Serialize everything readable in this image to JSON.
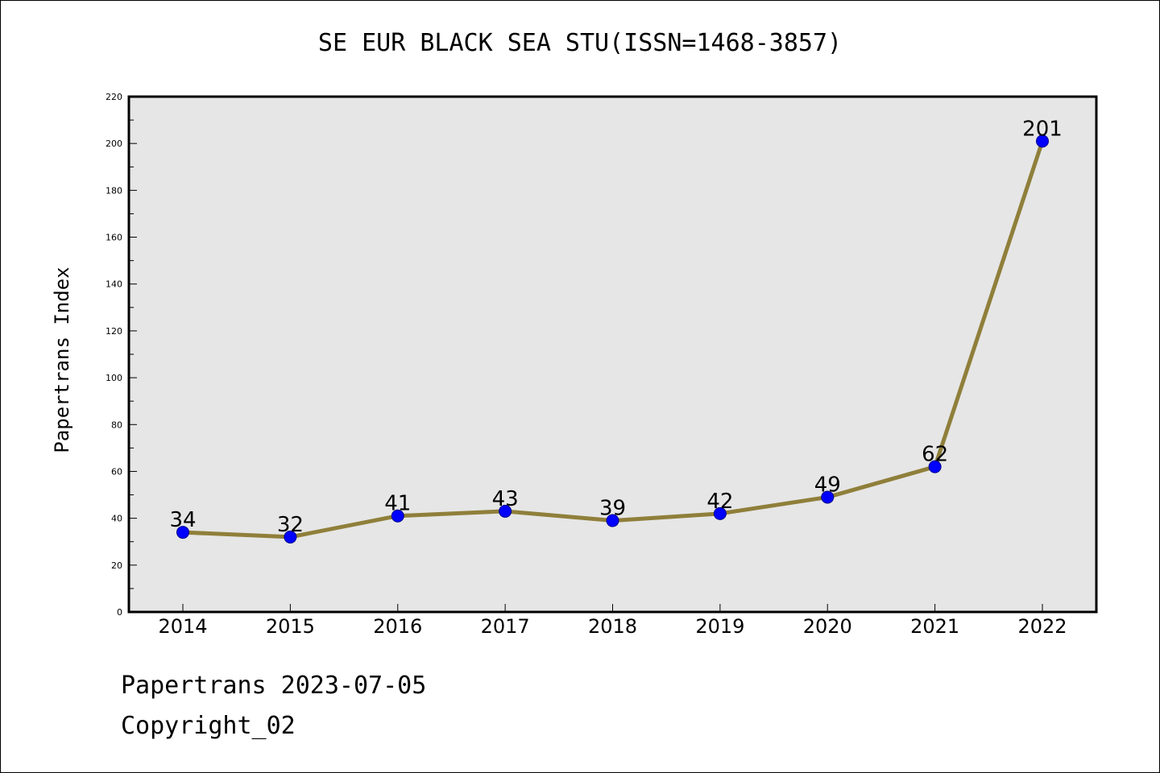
{
  "title": "SE EUR BLACK SEA STU(ISSN=1468-3857)",
  "footer": {
    "date_line": "Papertrans 2023-07-05",
    "copyright_line": "Copyright_02"
  },
  "colors": {
    "line": "#8f7f3a",
    "marker_fill": "#0000ff",
    "marker_stroke": "#00008b",
    "plot_background": "#e6e6e6"
  },
  "chart_data": {
    "type": "line",
    "title": "SE EUR BLACK SEA STU(ISSN=1468-3857)",
    "xlabel": "",
    "ylabel": "Papertrans Index",
    "categories": [
      "2014",
      "2015",
      "2016",
      "2017",
      "2018",
      "2019",
      "2020",
      "2021",
      "2022"
    ],
    "series": [
      {
        "values": [
          34,
          32,
          41,
          43,
          39,
          42,
          49,
          62,
          201
        ]
      }
    ],
    "data_labels": [
      "34",
      "32",
      "41",
      "43",
      "39",
      "42",
      "49",
      "62",
      "201"
    ],
    "y_ticks": [
      "0",
      "20",
      "40",
      "60",
      "80",
      "100",
      "120",
      "140",
      "160",
      "180",
      "200",
      "220"
    ],
    "ylim": [
      0,
      220
    ],
    "grid": false,
    "legend": "none"
  }
}
